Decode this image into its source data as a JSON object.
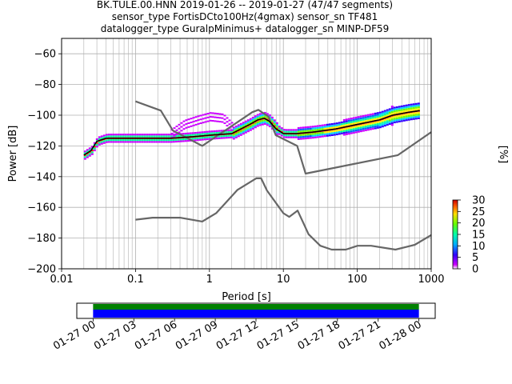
{
  "title_lines": [
    "BK.TULE.00.HNN   2019-01-26 -- 2019-01-27  (47/47 segments)",
    "sensor_type FortisDCto100Hz(4gmax) sensor_sn TF481",
    "datalogger_type GuralpMinimus+ datalogger_sn MINP-DF59"
  ],
  "colors": {
    "model": "#666666",
    "mode": "#000000",
    "mean": "#ff0000",
    "timeline_top": "#008000",
    "timeline_bottom": "#0000ff"
  },
  "chart_data": [
    {
      "type": "heatmap",
      "name": "ppsd",
      "xlabel": "Period [s]",
      "ylabel": "Power [dB]",
      "x_scale": "log",
      "xlim": [
        0.01,
        1000
      ],
      "ylim": [
        -200,
        -50
      ],
      "x_ticks": [
        "0.01",
        "0.1",
        "1",
        "10",
        "100",
        "1000"
      ],
      "x_tick_values": [
        0.01,
        0.1,
        1,
        10,
        100,
        1000
      ],
      "y_ticks": [
        "−200",
        "−180",
        "−160",
        "−140",
        "−120",
        "−100",
        "−80",
        "−60"
      ],
      "y_tick_values": [
        -200,
        -180,
        -160,
        -140,
        -120,
        -100,
        -80,
        -60
      ],
      "grid": true,
      "colorbar": {
        "label": "[%]",
        "ticks": [
          "0",
          "5",
          "10",
          "15",
          "20",
          "25",
          "30"
        ],
        "tick_values": [
          0,
          5,
          10,
          15,
          20,
          25,
          30
        ],
        "range": [
          0,
          30
        ]
      },
      "noise_models": [
        {
          "name": "NHNM",
          "x": [
            0.1,
            0.22,
            0.32,
            0.8,
            3.8,
            4.6,
            6.3,
            7.9,
            15.4,
            20,
            354.8,
            1000
          ],
          "y": [
            -91,
            -97,
            -110,
            -120,
            -98,
            -96.5,
            -101,
            -113,
            -120,
            -138,
            -126,
            -111
          ]
        },
        {
          "name": "NLNM",
          "x": [
            0.1,
            0.17,
            0.4,
            0.8,
            1.24,
            2.4,
            4.3,
            5,
            6,
            10,
            12,
            15.6,
            21.9,
            31.6,
            45,
            70,
            101,
            154,
            328,
            600,
            1000
          ],
          "y": [
            -168,
            -166.7,
            -166.7,
            -169.2,
            -163.7,
            -148.6,
            -141.1,
            -141.1,
            -149,
            -163.8,
            -166.2,
            -162.1,
            -177.5,
            -185,
            -187.5,
            -187.5,
            -185,
            -185,
            -187.5,
            -184.4,
            -178
          ]
        }
      ],
      "mode_curve": {
        "x": [
          0.02,
          0.025,
          0.03,
          0.04,
          0.1,
          0.3,
          0.6,
          1,
          2,
          3.5,
          4.5,
          5.5,
          6.5,
          8,
          10,
          15,
          25,
          50,
          100,
          200,
          300,
          500,
          700
        ],
        "y": [
          -126,
          -123,
          -117,
          -115,
          -115,
          -115,
          -114,
          -113,
          -112,
          -106,
          -103,
          -102,
          -104,
          -109,
          -112,
          -112,
          -111,
          -109,
          -106,
          -103,
          -100,
          -98,
          -97
        ]
      },
      "secondary_mode": {
        "x": [
          0.3,
          0.45,
          0.7,
          1,
          1.5,
          2
        ],
        "y": [
          -112,
          -106,
          -103,
          -101,
          -102,
          -108
        ]
      }
    },
    {
      "type": "bar",
      "name": "data-availability-timeline",
      "x_ticks": [
        "01-27 00",
        "01-27 03",
        "01-27 06",
        "01-27 09",
        "01-27 12",
        "01-27 15",
        "01-27 18",
        "01-27 21",
        "01-28 00"
      ],
      "coverage": [
        {
          "row": "top",
          "start_hour": 0,
          "end_hour": 24
        },
        {
          "row": "bottom",
          "start_hour": 0,
          "end_hour": 24
        }
      ],
      "xlim_hours": [
        -1.2,
        25.2
      ]
    }
  ]
}
